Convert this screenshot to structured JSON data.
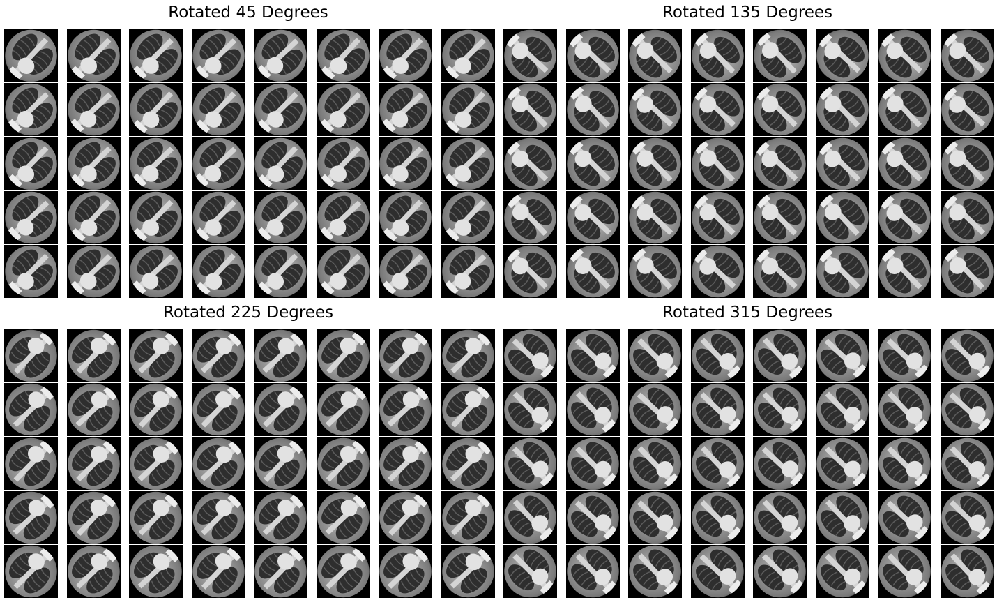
{
  "figure": {
    "panels": [
      {
        "title": "Rotated 45 Degrees",
        "rotation_deg": 45,
        "rows": 5,
        "cols": 8
      },
      {
        "title": "Rotated 135 Degrees",
        "rotation_deg": 135,
        "rows": 5,
        "cols": 8
      },
      {
        "title": "Rotated 225 Degrees",
        "rotation_deg": 225,
        "rows": 5,
        "cols": 8
      },
      {
        "title": "Rotated 315 Degrees",
        "rotation_deg": 315,
        "rows": 5,
        "cols": 8
      }
    ],
    "thumbnail_subject": "chest-xray-icon",
    "colors": {
      "background": "#ffffff",
      "image_border": "#000000"
    }
  }
}
